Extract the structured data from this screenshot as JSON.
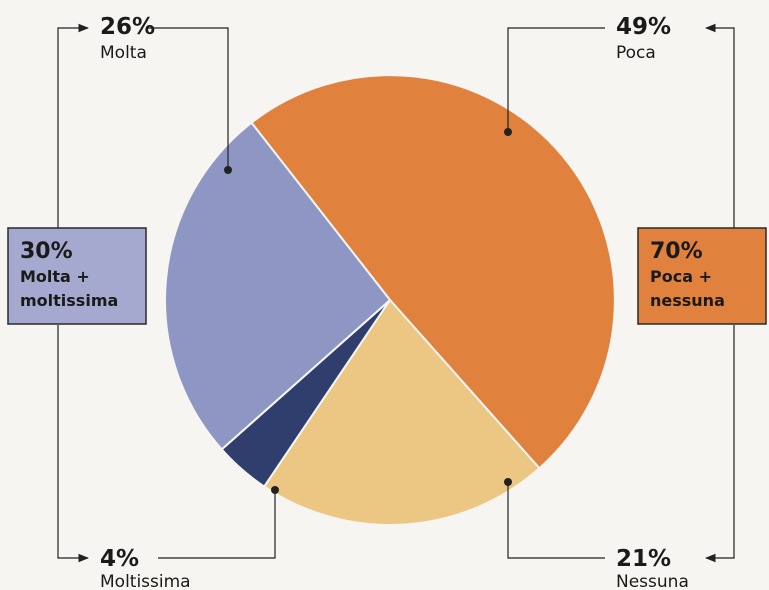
{
  "chart_data": {
    "type": "pie",
    "slices": [
      {
        "pct": "49%",
        "label": "Poca",
        "value": 49,
        "color": "#e0813e"
      },
      {
        "pct": "21%",
        "label": "Nessuna",
        "value": 21,
        "color": "#ecc783"
      },
      {
        "pct": "4%",
        "label": "Moltissima",
        "value": 4,
        "color": "#2f3e6d"
      },
      {
        "pct": "26%",
        "label": "Molta",
        "value": 26,
        "color": "#8e97c4"
      }
    ],
    "groups": {
      "left": {
        "pct": "30%",
        "line1": "Molta +",
        "line2": "moltissima",
        "color": "#a5a9cf"
      },
      "right": {
        "pct": "70%",
        "line1": "Poca +",
        "line2": "nessuna",
        "color": "#e0813e"
      }
    }
  }
}
